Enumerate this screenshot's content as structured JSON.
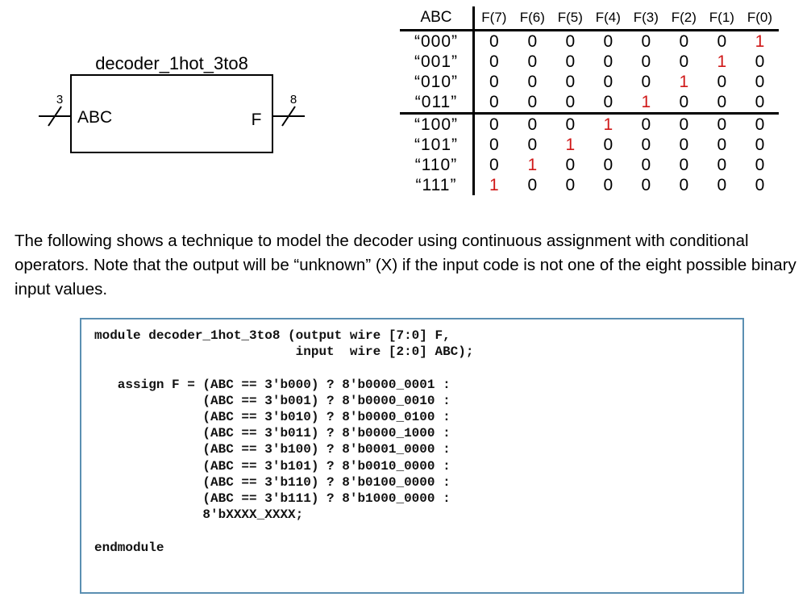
{
  "block": {
    "title": "decoder_1hot_3to8",
    "input_label": "ABC",
    "output_label": "F",
    "input_width": "3",
    "output_width": "8"
  },
  "truth_table": {
    "header_input": "ABC",
    "header_outputs": [
      "F(7)",
      "F(6)",
      "F(5)",
      "F(4)",
      "F(3)",
      "F(2)",
      "F(1)",
      "F(0)"
    ],
    "rows": [
      {
        "abc": "“000”",
        "values": [
          "0",
          "0",
          "0",
          "0",
          "0",
          "0",
          "0",
          "1"
        ],
        "hot": 7
      },
      {
        "abc": "“001”",
        "values": [
          "0",
          "0",
          "0",
          "0",
          "0",
          "0",
          "1",
          "0"
        ],
        "hot": 6
      },
      {
        "abc": "“010”",
        "values": [
          "0",
          "0",
          "0",
          "0",
          "0",
          "1",
          "0",
          "0"
        ],
        "hot": 5
      },
      {
        "abc": "“011”",
        "values": [
          "0",
          "0",
          "0",
          "0",
          "1",
          "0",
          "0",
          "0"
        ],
        "hot": 4
      },
      {
        "abc": "“100”",
        "values": [
          "0",
          "0",
          "0",
          "1",
          "0",
          "0",
          "0",
          "0"
        ],
        "hot": 3
      },
      {
        "abc": "“101”",
        "values": [
          "0",
          "0",
          "1",
          "0",
          "0",
          "0",
          "0",
          "0"
        ],
        "hot": 2
      },
      {
        "abc": "“110”",
        "values": [
          "0",
          "1",
          "0",
          "0",
          "0",
          "0",
          "0",
          "0"
        ],
        "hot": 1
      },
      {
        "abc": "“111”",
        "values": [
          "1",
          "0",
          "0",
          "0",
          "0",
          "0",
          "0",
          "0"
        ],
        "hot": 0
      }
    ],
    "hot_color": "#d01818"
  },
  "description": "The following shows a technique to model the decoder using continuous assignment with conditional operators.  Note that the output will be “unknown” (X) if the input code is not one of the eight possible binary input values.",
  "code": {
    "lines": [
      "module decoder_1hot_3to8 (output wire [7:0] F,",
      "                          input  wire [2:0] ABC);",
      "",
      "   assign F = (ABC == 3'b000) ? 8'b0000_0001 :",
      "              (ABC == 3'b001) ? 8'b0000_0010 :",
      "              (ABC == 3'b010) ? 8'b0000_0100 :",
      "              (ABC == 3'b011) ? 8'b0000_1000 :",
      "              (ABC == 3'b100) ? 8'b0001_0000 :",
      "              (ABC == 3'b101) ? 8'b0010_0000 :",
      "              (ABC == 3'b110) ? 8'b0100_0000 :",
      "              (ABC == 3'b111) ? 8'b1000_0000 :",
      "              8'bXXXX_XXXX;",
      "",
      "endmodule"
    ],
    "border_color": "#5b8fb2"
  }
}
